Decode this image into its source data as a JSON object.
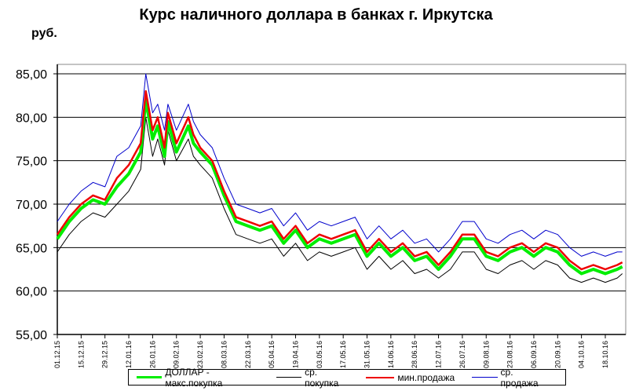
{
  "chart_data": {
    "type": "line",
    "title": "Курс наличного доллара в банках г. Иркутска",
    "ylabel": "руб.",
    "ylim": [
      55,
      85
    ],
    "yticks": [
      "55,00",
      "60,00",
      "65,00",
      "70,00",
      "75,00",
      "80,00",
      "85,00"
    ],
    "xlim": [
      "01.12.15",
      "30.10.16"
    ],
    "xticks": [
      "01.12.15",
      "15.12.15",
      "29.12.15",
      "12.01.16",
      "26.01.16",
      "09.02.16",
      "23.02.16",
      "08.03.16",
      "22.03.16",
      "05.04.16",
      "19.04.16",
      "03.05.16",
      "17.05.16",
      "31.05.16",
      "14.06.16",
      "28.06.16",
      "12.07.16",
      "26.07.16",
      "09.08.16",
      "23.08.16",
      "06.09.16",
      "20.09.16",
      "04.10.16",
      "18.10.16"
    ],
    "grid": "horizontal",
    "legend_position": "bottom",
    "x": [
      "01.12.15",
      "08.12.15",
      "15.12.15",
      "22.12.15",
      "29.12.15",
      "05.01.16",
      "12.01.16",
      "19.01.16",
      "22.01.16",
      "26.01.16",
      "29.01.16",
      "02.02.16",
      "04.02.16",
      "09.02.16",
      "16.02.16",
      "19.02.16",
      "23.02.16",
      "01.03.16",
      "08.03.16",
      "15.03.16",
      "22.03.16",
      "29.03.16",
      "05.04.16",
      "12.04.16",
      "19.04.16",
      "26.04.16",
      "03.05.16",
      "10.05.16",
      "17.05.16",
      "24.05.16",
      "31.05.16",
      "07.06.16",
      "14.06.16",
      "21.06.16",
      "28.06.16",
      "05.07.16",
      "12.07.16",
      "19.07.16",
      "26.07.16",
      "02.08.16",
      "09.08.16",
      "16.08.16",
      "23.08.16",
      "30.08.16",
      "06.09.16",
      "13.09.16",
      "20.09.16",
      "27.09.16",
      "04.10.16",
      "11.10.16",
      "18.10.16",
      "25.10.16",
      "28.10.16"
    ],
    "series": [
      {
        "name": "ДОЛЛАР  - макс.покупка",
        "color": "#00ee00",
        "width": 4,
        "values": [
          66.0,
          68.0,
          69.5,
          70.5,
          70.0,
          72.0,
          73.5,
          76.0,
          82.0,
          77.5,
          79.0,
          75.5,
          79.5,
          76.0,
          79.0,
          77.0,
          76.0,
          74.5,
          71.0,
          68.0,
          67.5,
          67.0,
          67.5,
          65.5,
          67.0,
          65.0,
          66.0,
          65.5,
          66.0,
          66.5,
          64.0,
          65.5,
          64.0,
          65.0,
          63.5,
          64.0,
          62.5,
          64.0,
          66.0,
          66.0,
          64.0,
          63.5,
          64.5,
          65.0,
          64.0,
          65.0,
          64.5,
          63.0,
          62.0,
          62.5,
          62.0,
          62.5,
          62.8
        ]
      },
      {
        "name": "ср. покупка",
        "color": "#000000",
        "width": 1,
        "values": [
          64.5,
          66.5,
          68.0,
          69.0,
          68.5,
          70.0,
          71.5,
          74.0,
          80.0,
          75.5,
          77.5,
          74.5,
          78.5,
          75.0,
          77.5,
          75.5,
          74.5,
          73.0,
          69.5,
          66.5,
          66.0,
          65.5,
          66.0,
          64.0,
          65.5,
          63.5,
          64.5,
          64.0,
          64.5,
          65.0,
          62.5,
          64.0,
          62.5,
          63.5,
          62.0,
          62.5,
          61.5,
          62.5,
          64.5,
          64.5,
          62.5,
          62.0,
          63.0,
          63.5,
          62.5,
          63.5,
          63.0,
          61.5,
          61.0,
          61.5,
          61.0,
          61.5,
          62.0
        ]
      },
      {
        "name": "мин.продажа",
        "color": "#ee0000",
        "width": 2.5,
        "values": [
          66.5,
          68.5,
          70.0,
          71.0,
          70.5,
          73.0,
          74.5,
          77.0,
          83.0,
          78.5,
          80.0,
          76.5,
          80.5,
          77.0,
          80.0,
          78.0,
          76.5,
          75.0,
          71.5,
          68.5,
          68.0,
          67.5,
          68.0,
          66.0,
          67.5,
          65.5,
          66.5,
          66.0,
          66.5,
          67.0,
          64.5,
          66.0,
          64.5,
          65.5,
          64.0,
          64.5,
          63.0,
          64.5,
          66.5,
          66.5,
          64.5,
          64.0,
          65.0,
          65.5,
          64.5,
          65.5,
          65.0,
          63.5,
          62.5,
          63.0,
          62.5,
          63.0,
          63.3
        ]
      },
      {
        "name": "ср. продажа",
        "color": "#0000cc",
        "width": 1,
        "values": [
          68.0,
          70.0,
          71.5,
          72.5,
          72.0,
          75.5,
          76.5,
          79.0,
          85.0,
          80.5,
          81.5,
          78.5,
          81.5,
          78.5,
          81.5,
          79.5,
          78.0,
          76.5,
          73.0,
          70.0,
          69.5,
          69.0,
          69.5,
          67.5,
          69.0,
          67.0,
          68.0,
          67.5,
          68.0,
          68.5,
          66.0,
          67.5,
          66.0,
          67.0,
          65.5,
          66.0,
          64.5,
          66.0,
          68.0,
          68.0,
          66.0,
          65.5,
          66.5,
          67.0,
          66.0,
          67.0,
          66.5,
          65.0,
          64.0,
          64.5,
          64.0,
          64.5,
          64.5
        ]
      }
    ]
  }
}
